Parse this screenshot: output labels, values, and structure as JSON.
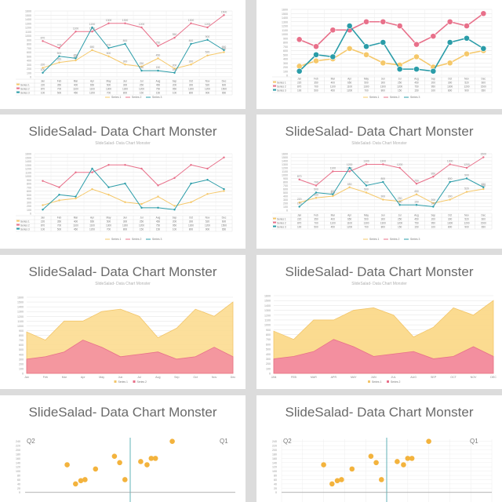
{
  "slides": [
    {
      "title": "",
      "subtitle": ""
    },
    {
      "title": "",
      "subtitle": ""
    },
    {
      "title": "SlideSalad- Data Chart Monster",
      "subtitle": "SlideSalad- Data Chart Monster"
    },
    {
      "title": "SlideSalad- Data Chart Monster",
      "subtitle": "SlideSalad- Data Chart Monster"
    },
    {
      "title": "SlideSalad- Data Chart Monster",
      "subtitle": "SlideSalad- Data Chart Monster"
    },
    {
      "title": "SlideSalad- Data Chart Monster",
      "subtitle": "SlideSalad- Data Chart Monster"
    },
    {
      "title": "SlideSalad- Data Chart Monster",
      "subtitle": "SlideSalad- Data Chart Monster"
    },
    {
      "title": "SlideSalad- Data Chart Monster",
      "subtitle": "SlideSalad- Data Chart Monster"
    }
  ],
  "quadrants": {
    "q1": "Q1",
    "q2": "Q2"
  },
  "colors": {
    "series1": "#f5c86a",
    "series2": "#e8708a",
    "series3": "#2a9ca8",
    "area1": "#fbd98a",
    "area2": "#f28ba0",
    "dot": "#f3b33d",
    "grid": "#e2e2e2"
  },
  "chart_data": [
    {
      "type": "line",
      "categories": [
        "Jan",
        "Feb",
        "Mar",
        "Apr",
        "May",
        "Jun",
        "Jul",
        "Aug",
        "Sep",
        "Oct",
        "Nov",
        "Dec"
      ],
      "series": [
        {
          "name": "Series 1",
          "values": [
            220,
            350,
            400,
            650,
            500,
            300,
            250,
            450,
            200,
            300,
            520,
            600
          ]
        },
        {
          "name": "Series 2",
          "values": [
            870,
            700,
            1100,
            1100,
            1300,
            1300,
            1200,
            750,
            950,
            1300,
            1200,
            1500
          ]
        },
        {
          "name": "Series 3",
          "values": [
            100,
            500,
            450,
            1200,
            700,
            800,
            150,
            150,
            100,
            800,
            900,
            650
          ]
        }
      ],
      "ylim": [
        0,
        1600
      ],
      "yticks": [
        0,
        100,
        200,
        300,
        400,
        500,
        600,
        700,
        800,
        900,
        1000,
        1100,
        1200,
        1300,
        1400,
        1500,
        1600
      ],
      "table": true
    },
    {
      "type": "line",
      "categories": [
        "Jan",
        "Feb",
        "Mar",
        "Apr",
        "May",
        "Jun",
        "Jul",
        "Aug",
        "Sep",
        "Oct",
        "Nov",
        "Dec"
      ],
      "series": [
        {
          "name": "Series 1",
          "values": [
            220,
            350,
            400,
            650,
            500,
            300,
            250,
            450,
            200,
            300,
            520,
            600
          ]
        },
        {
          "name": "Series 2",
          "values": [
            870,
            700,
            1100,
            1100,
            1300,
            1300,
            1200,
            750,
            950,
            1300,
            1200,
            1500
          ]
        },
        {
          "name": "Series 3",
          "values": [
            100,
            500,
            450,
            1200,
            700,
            800,
            150,
            150,
            100,
            800,
            900,
            650
          ]
        }
      ],
      "ylim": [
        0,
        1600
      ],
      "yticks": [
        0,
        100,
        200,
        300,
        400,
        500,
        600,
        700,
        800,
        900,
        1000,
        1100,
        1200,
        1300,
        1400,
        1500,
        1600
      ],
      "table": true
    },
    {
      "type": "line",
      "categories": [
        "Jan",
        "Feb",
        "Mar",
        "Apr",
        "May",
        "Jun",
        "Jul",
        "Aug",
        "Sep",
        "Oct",
        "Nov",
        "Dec"
      ],
      "series": [
        {
          "name": "Series 1",
          "values": [
            220,
            350,
            400,
            650,
            500,
            300,
            250,
            450,
            200,
            300,
            520,
            600
          ]
        },
        {
          "name": "Series 2",
          "values": [
            870,
            700,
            1100,
            1100,
            1300,
            1300,
            1200,
            750,
            950,
            1300,
            1200,
            1500
          ]
        },
        {
          "name": "Series 3",
          "values": [
            100,
            500,
            450,
            1200,
            700,
            800,
            150,
            150,
            100,
            800,
            900,
            650
          ]
        }
      ],
      "ylim": [
        0,
        1600
      ],
      "yticks": [
        0,
        100,
        200,
        300,
        400,
        500,
        600,
        700,
        800,
        900,
        1000,
        1100,
        1200,
        1300,
        1400,
        1500,
        1600
      ],
      "table": true
    },
    {
      "type": "line",
      "categories": [
        "Jan",
        "Feb",
        "Mar",
        "Apr",
        "May",
        "Jun",
        "Jul",
        "Aug",
        "Sep",
        "Oct",
        "Nov",
        "Dec"
      ],
      "series": [
        {
          "name": "Series 1",
          "values": [
            220,
            350,
            400,
            650,
            500,
            300,
            250,
            450,
            200,
            300,
            520,
            600
          ]
        },
        {
          "name": "Series 2",
          "values": [
            870,
            700,
            1100,
            1100,
            1300,
            1300,
            1200,
            750,
            950,
            1300,
            1200,
            1500
          ]
        },
        {
          "name": "Series 3",
          "values": [
            100,
            500,
            450,
            1200,
            700,
            800,
            150,
            150,
            100,
            800,
            900,
            650
          ]
        }
      ],
      "ylim": [
        0,
        1600
      ],
      "yticks": [
        0,
        100,
        200,
        300,
        400,
        500,
        600,
        700,
        800,
        900,
        1000,
        1100,
        1200,
        1300,
        1400,
        1500,
        1600
      ],
      "table": true
    },
    {
      "type": "area",
      "categories": [
        "Jan",
        "Feb",
        "Mar",
        "Apr",
        "May",
        "Jun",
        "Jul",
        "Aug",
        "Sep",
        "Oct",
        "Nov",
        "Dec"
      ],
      "series": [
        {
          "name": "Series 1",
          "values": [
            870,
            700,
            1100,
            1100,
            1300,
            1350,
            1200,
            750,
            950,
            1350,
            1200,
            1500
          ]
        },
        {
          "name": "Series 2",
          "values": [
            300,
            350,
            450,
            700,
            550,
            350,
            400,
            450,
            300,
            350,
            550,
            350
          ]
        }
      ],
      "ylim": [
        0,
        1600
      ],
      "yticks": [
        0,
        100,
        200,
        300,
        400,
        500,
        600,
        700,
        800,
        900,
        1000,
        1100,
        1200,
        1300,
        1400,
        1500,
        1600
      ]
    },
    {
      "type": "area",
      "categories": [
        "JAN",
        "FEB",
        "MAR",
        "APR",
        "MAY",
        "JUN",
        "JUL",
        "AUG",
        "SEP",
        "OCT",
        "NOV",
        "DEC"
      ],
      "series": [
        {
          "name": "Series 1",
          "values": [
            870,
            700,
            1100,
            1100,
            1300,
            1350,
            1200,
            750,
            950,
            1350,
            1200,
            1500
          ]
        },
        {
          "name": "Series 2",
          "values": [
            300,
            350,
            450,
            700,
            550,
            350,
            400,
            450,
            300,
            350,
            550,
            350
          ]
        }
      ],
      "ylim": [
        0,
        1600
      ],
      "yticks": [
        0,
        100,
        200,
        300,
        400,
        500,
        600,
        700,
        800,
        900,
        1000,
        1100,
        1200,
        1300,
        1400,
        1500,
        1600
      ]
    },
    {
      "type": "scatter",
      "points": [
        [
          -60,
          130
        ],
        [
          -52,
          40
        ],
        [
          -47,
          55
        ],
        [
          -43,
          60
        ],
        [
          -33,
          110
        ],
        [
          -15,
          170
        ],
        [
          -10,
          140
        ],
        [
          -5,
          60
        ],
        [
          10,
          145
        ],
        [
          16,
          130
        ],
        [
          20,
          160
        ],
        [
          24,
          160
        ],
        [
          40,
          240
        ]
      ],
      "xlim": [
        -100,
        100
      ],
      "ylim": [
        -60,
        250
      ],
      "yticks": [
        0,
        20,
        40,
        60,
        80,
        100,
        120,
        140,
        160,
        180,
        200,
        220,
        240
      ]
    },
    {
      "type": "scatter",
      "points": [
        [
          -60,
          130
        ],
        [
          -52,
          40
        ],
        [
          -47,
          55
        ],
        [
          -43,
          60
        ],
        [
          -33,
          110
        ],
        [
          -15,
          170
        ],
        [
          -10,
          140
        ],
        [
          -5,
          60
        ],
        [
          10,
          145
        ],
        [
          16,
          130
        ],
        [
          20,
          160
        ],
        [
          24,
          160
        ],
        [
          40,
          240
        ]
      ],
      "xlim": [
        -100,
        100
      ],
      "ylim": [
        -60,
        250
      ],
      "yticks": [
        0,
        20,
        40,
        60,
        80,
        100,
        120,
        140,
        160,
        180,
        200,
        220,
        240
      ]
    }
  ]
}
